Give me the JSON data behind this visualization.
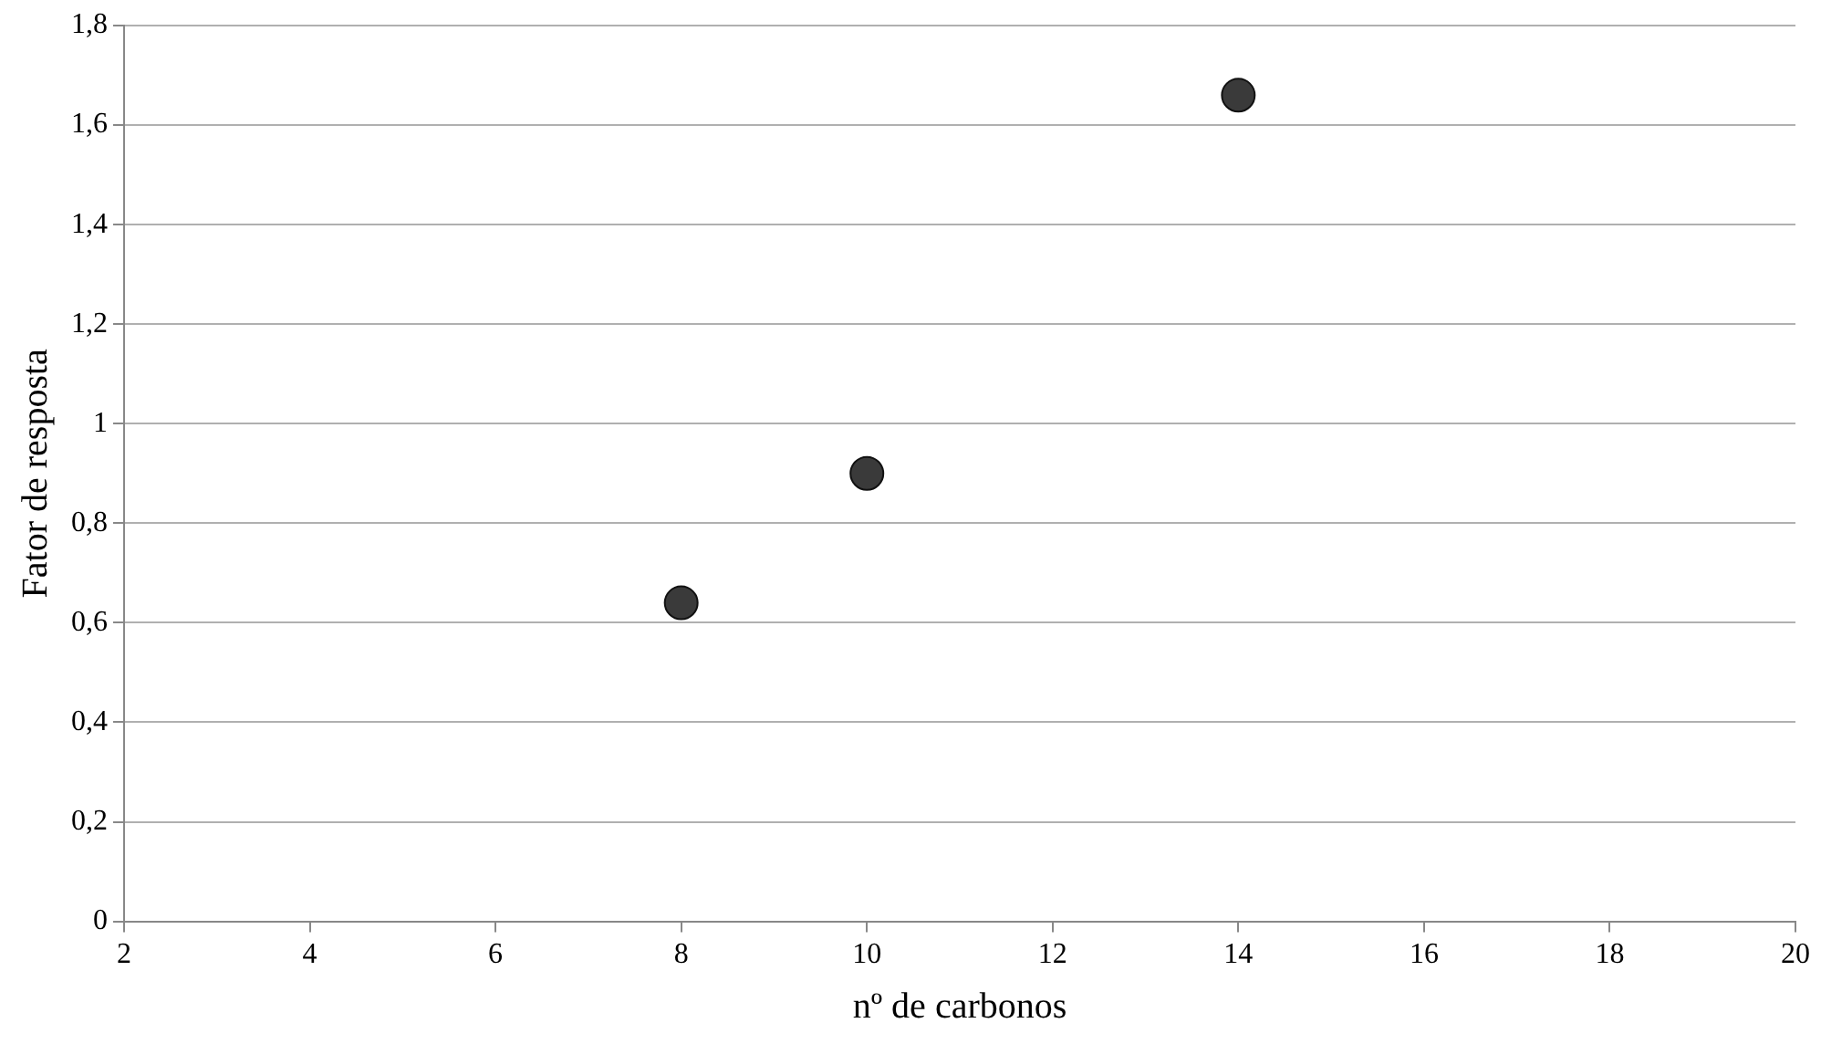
{
  "chart_data": {
    "type": "scatter",
    "xlabel": "nº de carbonos",
    "ylabel": "Fator de resposta",
    "x": [
      8,
      10,
      14
    ],
    "series": [
      {
        "color": "#3a3a3a",
        "values": [
          0.64,
          0.9,
          1.66
        ]
      }
    ],
    "xlim": [
      2,
      20
    ],
    "xticks": [
      2,
      4,
      6,
      8,
      10,
      12,
      14,
      16,
      18,
      20
    ],
    "ylim": [
      0,
      1.8
    ],
    "yticks": [
      0,
      {
        "value": 0.2,
        "label": "0,2"
      },
      {
        "value": 0.4,
        "label": "0,4"
      },
      {
        "value": 0.6,
        "label": "0,6"
      },
      {
        "value": 0.8,
        "label": "0,8"
      },
      1,
      {
        "value": 1.2,
        "label": "1,2"
      },
      {
        "value": 1.4,
        "label": "1,4"
      },
      {
        "value": 1.6,
        "label": "1,6"
      },
      {
        "value": 1.8,
        "label": "1,8"
      }
    ],
    "grid": "y",
    "marker": "circle",
    "legend": false
  }
}
